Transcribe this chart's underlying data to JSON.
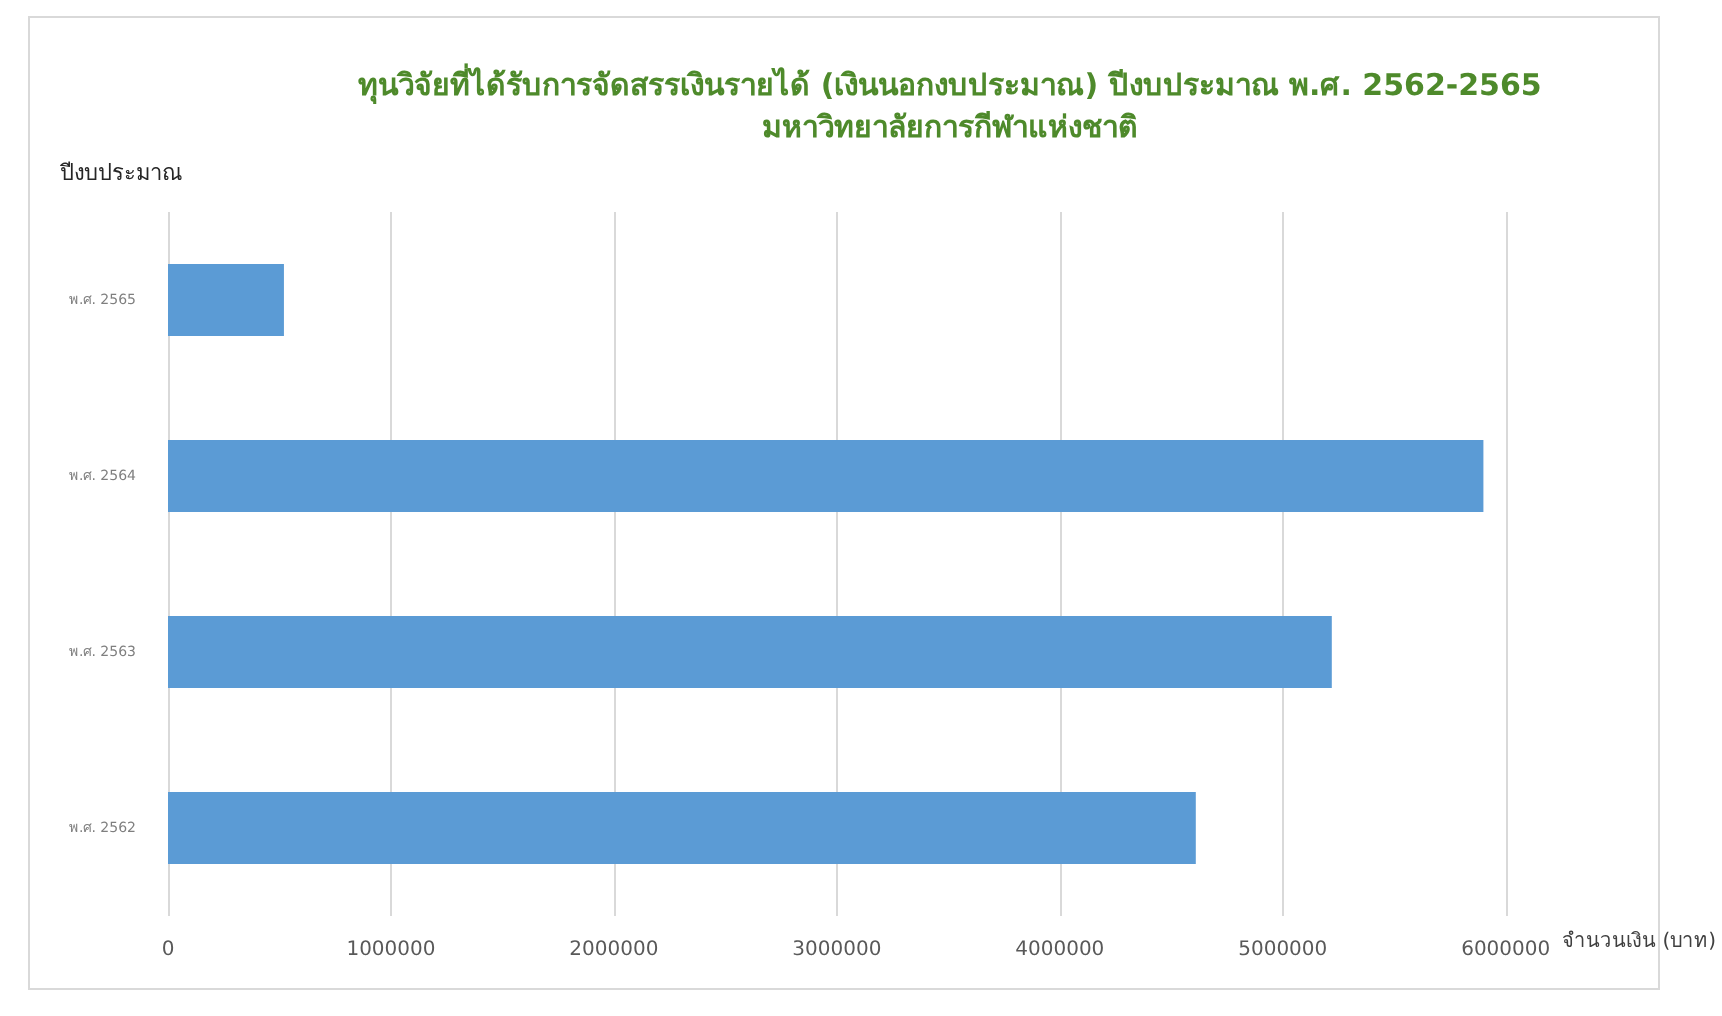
{
  "chart_data": {
    "type": "bar",
    "orientation": "horizontal",
    "title": "ทุนวิจัยที่ได้รับการจัดสรรเงินรายได้ (เงินนอกงบประมาณ) ปีงบประมาณ พ.ศ. 2562-2565",
    "subtitle": "มหาวิทยาลัยการกีฬาแห่งชาติ",
    "xlabel": "จำนวนเงิน (บาท)",
    "ylabel": "ปีงบประมาณ",
    "categories": [
      "พ.ศ. 2565",
      "พ.ศ. 2564",
      "พ.ศ. 2563",
      "พ.ศ. 2562"
    ],
    "values": [
      520000,
      5900000,
      5220000,
      4610000
    ],
    "color": "#5b9bd5",
    "xlim": [
      0,
      6000000
    ],
    "xticks": [
      0,
      1000000,
      2000000,
      3000000,
      4000000,
      5000000,
      6000000
    ],
    "grid": "x"
  }
}
